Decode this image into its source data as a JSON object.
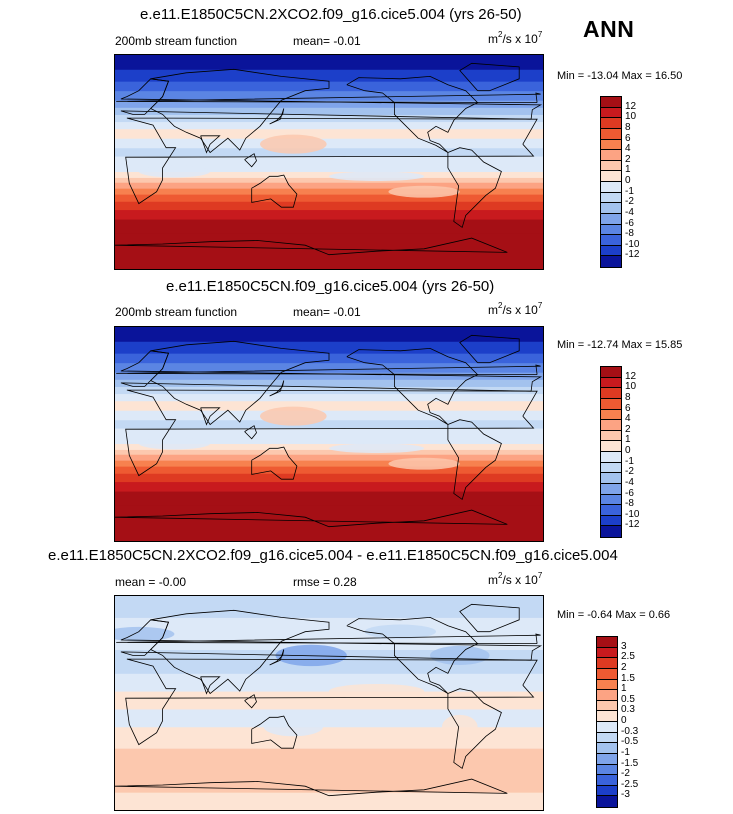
{
  "season": "ANN",
  "units_prefix": "m",
  "units_exp1": "2",
  "units_mid": "/s x 10",
  "units_exp2": "7",
  "panels": [
    {
      "title": "e.e11.E1850C5CN.2XCO2.f09_g16.cice5.004 (yrs 26-50)",
      "left_label": "200mb stream function",
      "stat_label": "mean=  -0.01",
      "minmax": "Min = -13.04 Max =  16.50",
      "levels": [
        "12",
        "10",
        "8",
        "6",
        "4",
        "2",
        "1",
        "0",
        "-1",
        "-2",
        "-4",
        "-6",
        "-8",
        "-10",
        "-12"
      ],
      "colors": [
        "#a50f15",
        "#c81a1e",
        "#de3a22",
        "#ee5a32",
        "#f7814f",
        "#fca383",
        "#fcc8ae",
        "#fde4d4",
        "#dde9f8",
        "#c3d9f4",
        "#a3c2ee",
        "#7fa4ea",
        "#5b85e3",
        "#3a63db",
        "#1c3fc9",
        "#0a149a"
      ],
      "field": "base"
    },
    {
      "title": "e.e11.E1850C5CN.f09_g16.cice5.004 (yrs 26-50)",
      "left_label": "200mb stream function",
      "stat_label": "mean=  -0.01",
      "minmax": "Min = -12.74 Max =  15.85",
      "levels": [
        "12",
        "10",
        "8",
        "6",
        "4",
        "2",
        "1",
        "0",
        "-1",
        "-2",
        "-4",
        "-6",
        "-8",
        "-10",
        "-12"
      ],
      "colors": [
        "#a50f15",
        "#c81a1e",
        "#de3a22",
        "#ee5a32",
        "#f7814f",
        "#fca383",
        "#fcc8ae",
        "#fde4d4",
        "#dde9f8",
        "#c3d9f4",
        "#a3c2ee",
        "#7fa4ea",
        "#5b85e3",
        "#3a63db",
        "#1c3fc9",
        "#0a149a"
      ],
      "field": "base"
    },
    {
      "title": "e.e11.E1850C5CN.2XCO2.f09_g16.cice5.004 - e.e11.E1850C5CN.f09_g16.cice5.004",
      "left_label": "mean =  -0.00",
      "stat_label": "rmse =   0.28",
      "minmax": "Min = -0.64 Max =   0.66",
      "levels": [
        "3",
        "2.5",
        "2",
        "1.5",
        "1",
        "0.5",
        "0.3",
        "0",
        "-0.3",
        "-0.5",
        "-1",
        "-1.5",
        "-2",
        "-2.5",
        "-3"
      ],
      "colors": [
        "#a50f15",
        "#c81a1e",
        "#de3a22",
        "#ee5a32",
        "#f7814f",
        "#fca383",
        "#fcc8ae",
        "#fde4d4",
        "#dde9f8",
        "#c3d9f4",
        "#a3c2ee",
        "#7fa4ea",
        "#5b85e3",
        "#3a63db",
        "#1c3fc9",
        "#0a149a"
      ],
      "field": "diff"
    }
  ]
}
